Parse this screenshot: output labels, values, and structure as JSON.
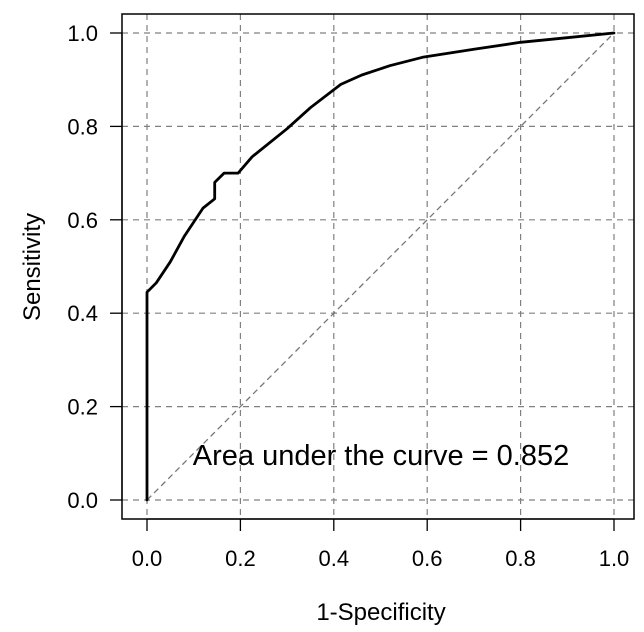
{
  "chart_data": {
    "type": "line",
    "title": "",
    "xlabel": "1-Specificity",
    "ylabel": "Sensitivity",
    "xlim": [
      0,
      1
    ],
    "ylim": [
      0,
      1
    ],
    "x_ticks": [
      0.0,
      0.2,
      0.4,
      0.6,
      0.8,
      1.0
    ],
    "y_ticks": [
      0.0,
      0.2,
      0.4,
      0.6,
      0.8,
      1.0
    ],
    "x_tick_labels": [
      "0.0",
      "0.2",
      "0.4",
      "0.6",
      "0.8",
      "1.0"
    ],
    "y_tick_labels": [
      "0.0",
      "0.2",
      "0.4",
      "0.6",
      "0.8",
      "1.0"
    ],
    "grid": true,
    "annotation": "Area under the curve = 0.852",
    "series": [
      {
        "x": [
          0.0,
          0.0,
          0.0,
          0.02,
          0.05,
          0.08,
          0.12,
          0.145,
          0.145,
          0.165,
          0.195,
          0.225,
          0.3,
          0.35,
          0.415,
          0.46,
          0.52,
          0.59,
          0.7,
          0.8,
          0.9,
          1.0
        ],
        "y": [
          0.0,
          0.4,
          0.445,
          0.465,
          0.51,
          0.565,
          0.625,
          0.645,
          0.68,
          0.7,
          0.7,
          0.735,
          0.795,
          0.84,
          0.89,
          0.91,
          0.93,
          0.948,
          0.965,
          0.98,
          0.99,
          1.0
        ],
        "color": "#000000"
      }
    ],
    "reference_line": {
      "x": [
        0,
        1
      ],
      "y": [
        0,
        1
      ],
      "style": "dashed",
      "color": "#777777"
    }
  }
}
